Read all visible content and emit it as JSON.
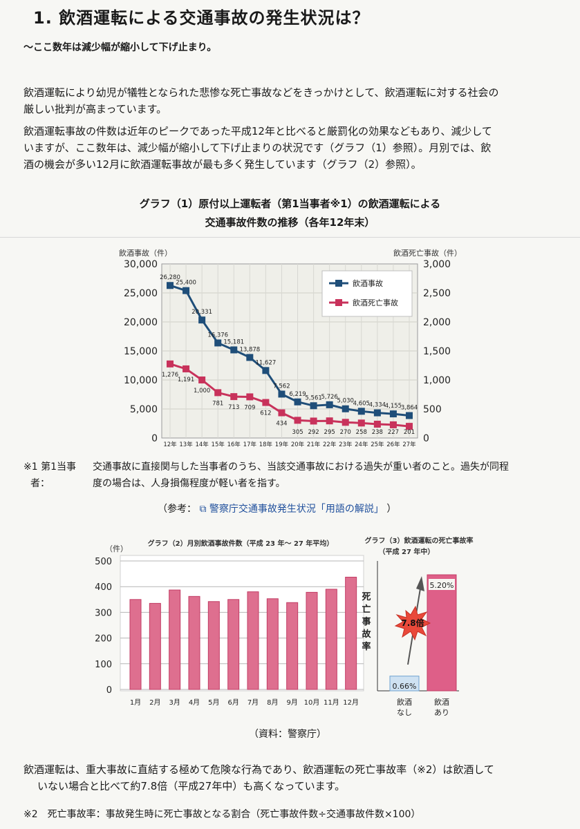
{
  "title": "1. 飲酒運転による交通事故の発生状況は？",
  "subtitle": "～ここ数年は減少幅が縮小して下げ止まり。",
  "para1_line1": "飲酒運転により幼児が犠牲となられた悲惨な死亡事故などをきっかけとして、飲酒運転に対する社会の",
  "para1_line2": "厳しい批判が高まっています。",
  "para2_line1": "飲酒運転事故の件数は近年のピークであった平成12年と比べると厳罰化の効果などもあり、減少して",
  "para2_line2": "いますが、ここ数年は、減少幅が縮小して下げ止まりの状況です（グラフ（1）参照）。月別では、飲",
  "para2_line3": "酒の機会が多い12月に飲酒運転事故が最も多く発生しています（グラフ（2）参照）。",
  "graph1_title1": "グラフ（1）原付以上運転者（第1当事者※1）の飲酒運転による",
  "graph1_title2": "交通事故件数の推移（各年12年末）",
  "note1_label1": "※1 第1当事",
  "note1_label2": "者：",
  "note1_text1": "交通事故に直接関与した当事者のうち、当該交通事故における過失が重い者のこと。過失が同程",
  "note1_text2": "度の場合は、人身損傷程度が軽い者を指す。",
  "ref_prefix": "（参考：",
  "ref_link": "警察庁交通事故発生状況「用語の解説」",
  "ref_suffix": "）",
  "source": "（資料：警察庁）",
  "para3_line1": "飲酒運転は、重大事故に直結する極めて危険な行為であり、飲酒運転の死亡事故率（※2）は飲酒して",
  "para3_line2": "いない場合と比べて約7.8倍（平成27年中）も高くなっています。",
  "footnote2": "※2　死亡事故率：事故発生時に死亡事故となる割合（死亡事故件数÷交通事故件数×100）",
  "colors": {
    "accidents": "#1f4e79",
    "fatal": "#c8325b",
    "bar": "#de6f8f",
    "bar_top": "#c23c64",
    "bg_plot": "#efefe9"
  },
  "chart_data": [
    {
      "type": "line",
      "ylabel_left": "飲酒事故（件）",
      "ylabel_right": "飲酒死亡事故（件）",
      "left_ticks": [
        "30,000",
        "25,000",
        "20,000",
        "15,000",
        "10,000",
        "5,000",
        "0"
      ],
      "right_ticks": [
        "3,000",
        "2,500",
        "2,000",
        "1,500",
        "1,000",
        "500",
        "0"
      ],
      "ylim_left": [
        0,
        30000
      ],
      "ylim_right": [
        0,
        3000
      ],
      "x": [
        "12年",
        "13年",
        "14年",
        "15年",
        "16年",
        "17年",
        "18年",
        "19年",
        "20年",
        "21年",
        "22年",
        "23年",
        "24年",
        "25年",
        "26年",
        "27年"
      ],
      "series": [
        {
          "name": "飲酒事故",
          "axis": "left",
          "values": [
            26280,
            25400,
            20331,
            16376,
            15181,
            13878,
            11627,
            7562,
            6219,
            5561,
            5726,
            5030,
            4605,
            4334,
            4155,
            3864
          ],
          "labels": [
            "26,280",
            "25,400",
            "20,331",
            "16,376",
            "15,181",
            "13,878",
            "11,627",
            "7,562",
            "6,219",
            "5,561",
            "5,726",
            "5,030",
            "4,605",
            "4,334",
            "4,155",
            "3,864"
          ]
        },
        {
          "name": "飲酒死亡事故",
          "axis": "right",
          "values": [
            1276,
            1191,
            1000,
            781,
            713,
            709,
            612,
            434,
            305,
            292,
            295,
            270,
            258,
            238,
            227,
            201
          ],
          "labels": [
            "1,276",
            "1,191",
            "1,000",
            "781",
            "713",
            "709",
            "612",
            "434",
            "305",
            "292",
            "295",
            "270",
            "258",
            "238",
            "227",
            "201"
          ]
        }
      ],
      "legend_position": "top-right",
      "grid": true
    },
    {
      "type": "bar",
      "title": "グラフ（2）月別飲酒事故件数（平成 23 年～ 27 年平均）",
      "ylabel": "（件）",
      "categories": [
        "1月",
        "2月",
        "3月",
        "4月",
        "5月",
        "6月",
        "7月",
        "8月",
        "9月",
        "10月",
        "11月",
        "12月"
      ],
      "values": [
        350,
        335,
        387,
        362,
        342,
        350,
        380,
        353,
        338,
        378,
        390,
        437
      ],
      "yticks": [
        "500",
        "400",
        "300",
        "200",
        "100",
        "0"
      ],
      "ylim": [
        0,
        500
      ],
      "grid": true
    },
    {
      "type": "bar",
      "title": "グラフ（3）飲酒運転の死亡事故率",
      "subtitle": "（平成 27 年中）",
      "ylabel": "死亡事故率",
      "categories_line1": [
        "飲酒",
        "飲酒"
      ],
      "categories_line2": [
        "なし",
        "あり"
      ],
      "values": [
        0.66,
        5.2
      ],
      "labels": [
        "0.66%",
        "5.20%"
      ],
      "annotation": "7.8倍",
      "colors": [
        "#cfe2f2",
        "#de5f88"
      ]
    }
  ]
}
